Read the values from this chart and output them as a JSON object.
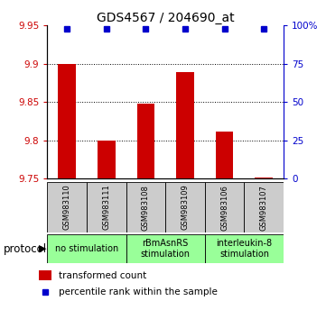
{
  "title": "GDS4567 / 204690_at",
  "samples": [
    "GSM983110",
    "GSM983111",
    "GSM983108",
    "GSM983109",
    "GSM983106",
    "GSM983107"
  ],
  "bar_values": [
    9.9,
    9.8,
    9.848,
    9.889,
    9.812,
    9.752
  ],
  "percentile_values": [
    98,
    98,
    98,
    98,
    98,
    98
  ],
  "ylim_left": [
    9.75,
    9.95
  ],
  "ylim_right": [
    0,
    100
  ],
  "yticks_left": [
    9.75,
    9.8,
    9.85,
    9.9,
    9.95
  ],
  "yticks_right": [
    0,
    25,
    50,
    75,
    100
  ],
  "ytick_labels_right": [
    "0",
    "25",
    "50",
    "75",
    "100%"
  ],
  "ytick_labels_left": [
    "9.75",
    "9.8",
    "9.85",
    "9.9",
    "9.95"
  ],
  "bar_color": "#cc0000",
  "percentile_color": "#0000cc",
  "dotted_lines": [
    9.8,
    9.85,
    9.9
  ],
  "protocol_groups": [
    {
      "label": "no stimulation",
      "start": 0,
      "end": 1,
      "color": "#99ff99"
    },
    {
      "label": "rBmAsnRS\nstimulation",
      "start": 2,
      "end": 3,
      "color": "#99ff99"
    },
    {
      "label": "interleukin-8\nstimulation",
      "start": 4,
      "end": 5,
      "color": "#99ff99"
    }
  ],
  "protocol_label": "protocol",
  "legend_items": [
    {
      "color": "#cc0000",
      "label": "transformed count"
    },
    {
      "color": "#0000cc",
      "label": "percentile rank within the sample"
    }
  ],
  "sample_box_color": "#cccccc",
  "tick_label_color_left": "#cc0000",
  "tick_label_color_right": "#0000cc",
  "title_fontsize": 10,
  "axis_fontsize": 7.5,
  "sample_fontsize": 6,
  "proto_fontsize": 7,
  "legend_fontsize": 7.5
}
